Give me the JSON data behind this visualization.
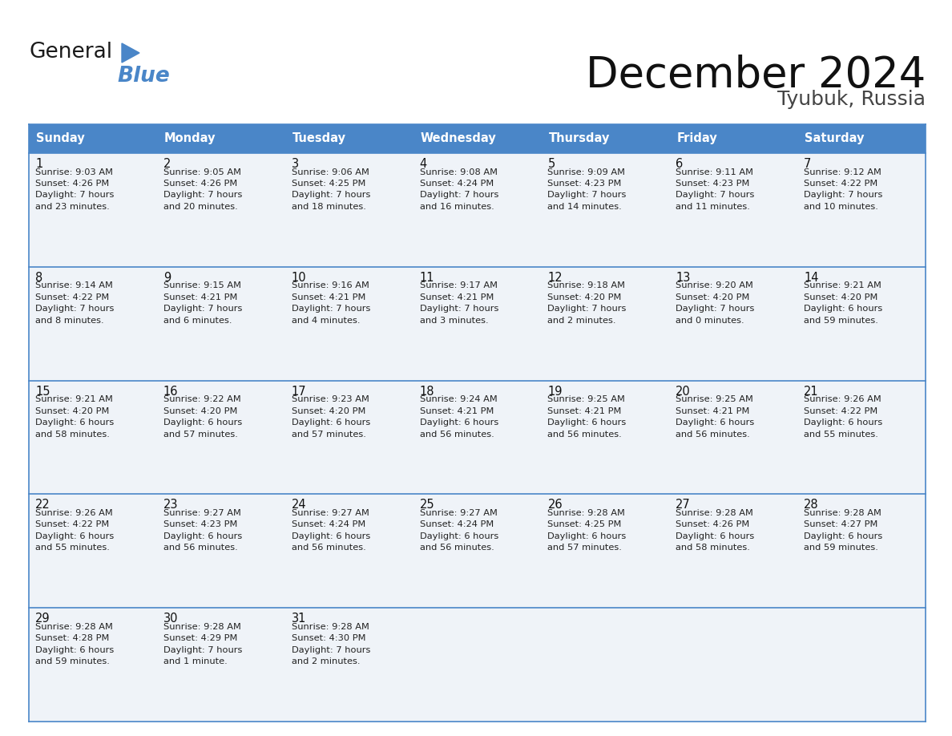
{
  "title": "December 2024",
  "subtitle": "Tyubuk, Russia",
  "header_bg_color": "#4a86c8",
  "header_text_color": "#ffffff",
  "border_color": "#4a86c8",
  "cell_bg_color": "#eff3f8",
  "text_color": "#222222",
  "day_names": [
    "Sunday",
    "Monday",
    "Tuesday",
    "Wednesday",
    "Thursday",
    "Friday",
    "Saturday"
  ],
  "days_data": [
    {
      "day": 1,
      "col": 0,
      "row": 0,
      "sunrise": "9:03 AM",
      "sunset": "4:26 PM",
      "daylight_h": "7 hours",
      "daylight_m": "and 23 minutes."
    },
    {
      "day": 2,
      "col": 1,
      "row": 0,
      "sunrise": "9:05 AM",
      "sunset": "4:26 PM",
      "daylight_h": "7 hours",
      "daylight_m": "and 20 minutes."
    },
    {
      "day": 3,
      "col": 2,
      "row": 0,
      "sunrise": "9:06 AM",
      "sunset": "4:25 PM",
      "daylight_h": "7 hours",
      "daylight_m": "and 18 minutes."
    },
    {
      "day": 4,
      "col": 3,
      "row": 0,
      "sunrise": "9:08 AM",
      "sunset": "4:24 PM",
      "daylight_h": "7 hours",
      "daylight_m": "and 16 minutes."
    },
    {
      "day": 5,
      "col": 4,
      "row": 0,
      "sunrise": "9:09 AM",
      "sunset": "4:23 PM",
      "daylight_h": "7 hours",
      "daylight_m": "and 14 minutes."
    },
    {
      "day": 6,
      "col": 5,
      "row": 0,
      "sunrise": "9:11 AM",
      "sunset": "4:23 PM",
      "daylight_h": "7 hours",
      "daylight_m": "and 11 minutes."
    },
    {
      "day": 7,
      "col": 6,
      "row": 0,
      "sunrise": "9:12 AM",
      "sunset": "4:22 PM",
      "daylight_h": "7 hours",
      "daylight_m": "and 10 minutes."
    },
    {
      "day": 8,
      "col": 0,
      "row": 1,
      "sunrise": "9:14 AM",
      "sunset": "4:22 PM",
      "daylight_h": "7 hours",
      "daylight_m": "and 8 minutes."
    },
    {
      "day": 9,
      "col": 1,
      "row": 1,
      "sunrise": "9:15 AM",
      "sunset": "4:21 PM",
      "daylight_h": "7 hours",
      "daylight_m": "and 6 minutes."
    },
    {
      "day": 10,
      "col": 2,
      "row": 1,
      "sunrise": "9:16 AM",
      "sunset": "4:21 PM",
      "daylight_h": "7 hours",
      "daylight_m": "and 4 minutes."
    },
    {
      "day": 11,
      "col": 3,
      "row": 1,
      "sunrise": "9:17 AM",
      "sunset": "4:21 PM",
      "daylight_h": "7 hours",
      "daylight_m": "and 3 minutes."
    },
    {
      "day": 12,
      "col": 4,
      "row": 1,
      "sunrise": "9:18 AM",
      "sunset": "4:20 PM",
      "daylight_h": "7 hours",
      "daylight_m": "and 2 minutes."
    },
    {
      "day": 13,
      "col": 5,
      "row": 1,
      "sunrise": "9:20 AM",
      "sunset": "4:20 PM",
      "daylight_h": "7 hours",
      "daylight_m": "and 0 minutes."
    },
    {
      "day": 14,
      "col": 6,
      "row": 1,
      "sunrise": "9:21 AM",
      "sunset": "4:20 PM",
      "daylight_h": "6 hours",
      "daylight_m": "and 59 minutes."
    },
    {
      "day": 15,
      "col": 0,
      "row": 2,
      "sunrise": "9:21 AM",
      "sunset": "4:20 PM",
      "daylight_h": "6 hours",
      "daylight_m": "and 58 minutes."
    },
    {
      "day": 16,
      "col": 1,
      "row": 2,
      "sunrise": "9:22 AM",
      "sunset": "4:20 PM",
      "daylight_h": "6 hours",
      "daylight_m": "and 57 minutes."
    },
    {
      "day": 17,
      "col": 2,
      "row": 2,
      "sunrise": "9:23 AM",
      "sunset": "4:20 PM",
      "daylight_h": "6 hours",
      "daylight_m": "and 57 minutes."
    },
    {
      "day": 18,
      "col": 3,
      "row": 2,
      "sunrise": "9:24 AM",
      "sunset": "4:21 PM",
      "daylight_h": "6 hours",
      "daylight_m": "and 56 minutes."
    },
    {
      "day": 19,
      "col": 4,
      "row": 2,
      "sunrise": "9:25 AM",
      "sunset": "4:21 PM",
      "daylight_h": "6 hours",
      "daylight_m": "and 56 minutes."
    },
    {
      "day": 20,
      "col": 5,
      "row": 2,
      "sunrise": "9:25 AM",
      "sunset": "4:21 PM",
      "daylight_h": "6 hours",
      "daylight_m": "and 56 minutes."
    },
    {
      "day": 21,
      "col": 6,
      "row": 2,
      "sunrise": "9:26 AM",
      "sunset": "4:22 PM",
      "daylight_h": "6 hours",
      "daylight_m": "and 55 minutes."
    },
    {
      "day": 22,
      "col": 0,
      "row": 3,
      "sunrise": "9:26 AM",
      "sunset": "4:22 PM",
      "daylight_h": "6 hours",
      "daylight_m": "and 55 minutes."
    },
    {
      "day": 23,
      "col": 1,
      "row": 3,
      "sunrise": "9:27 AM",
      "sunset": "4:23 PM",
      "daylight_h": "6 hours",
      "daylight_m": "and 56 minutes."
    },
    {
      "day": 24,
      "col": 2,
      "row": 3,
      "sunrise": "9:27 AM",
      "sunset": "4:24 PM",
      "daylight_h": "6 hours",
      "daylight_m": "and 56 minutes."
    },
    {
      "day": 25,
      "col": 3,
      "row": 3,
      "sunrise": "9:27 AM",
      "sunset": "4:24 PM",
      "daylight_h": "6 hours",
      "daylight_m": "and 56 minutes."
    },
    {
      "day": 26,
      "col": 4,
      "row": 3,
      "sunrise": "9:28 AM",
      "sunset": "4:25 PM",
      "daylight_h": "6 hours",
      "daylight_m": "and 57 minutes."
    },
    {
      "day": 27,
      "col": 5,
      "row": 3,
      "sunrise": "9:28 AM",
      "sunset": "4:26 PM",
      "daylight_h": "6 hours",
      "daylight_m": "and 58 minutes."
    },
    {
      "day": 28,
      "col": 6,
      "row": 3,
      "sunrise": "9:28 AM",
      "sunset": "4:27 PM",
      "daylight_h": "6 hours",
      "daylight_m": "and 59 minutes."
    },
    {
      "day": 29,
      "col": 0,
      "row": 4,
      "sunrise": "9:28 AM",
      "sunset": "4:28 PM",
      "daylight_h": "6 hours",
      "daylight_m": "and 59 minutes."
    },
    {
      "day": 30,
      "col": 1,
      "row": 4,
      "sunrise": "9:28 AM",
      "sunset": "4:29 PM",
      "daylight_h": "7 hours",
      "daylight_m": "and 1 minute."
    },
    {
      "day": 31,
      "col": 2,
      "row": 4,
      "sunrise": "9:28 AM",
      "sunset": "4:30 PM",
      "daylight_h": "7 hours",
      "daylight_m": "and 2 minutes."
    }
  ],
  "num_rows": 5,
  "num_cols": 7
}
